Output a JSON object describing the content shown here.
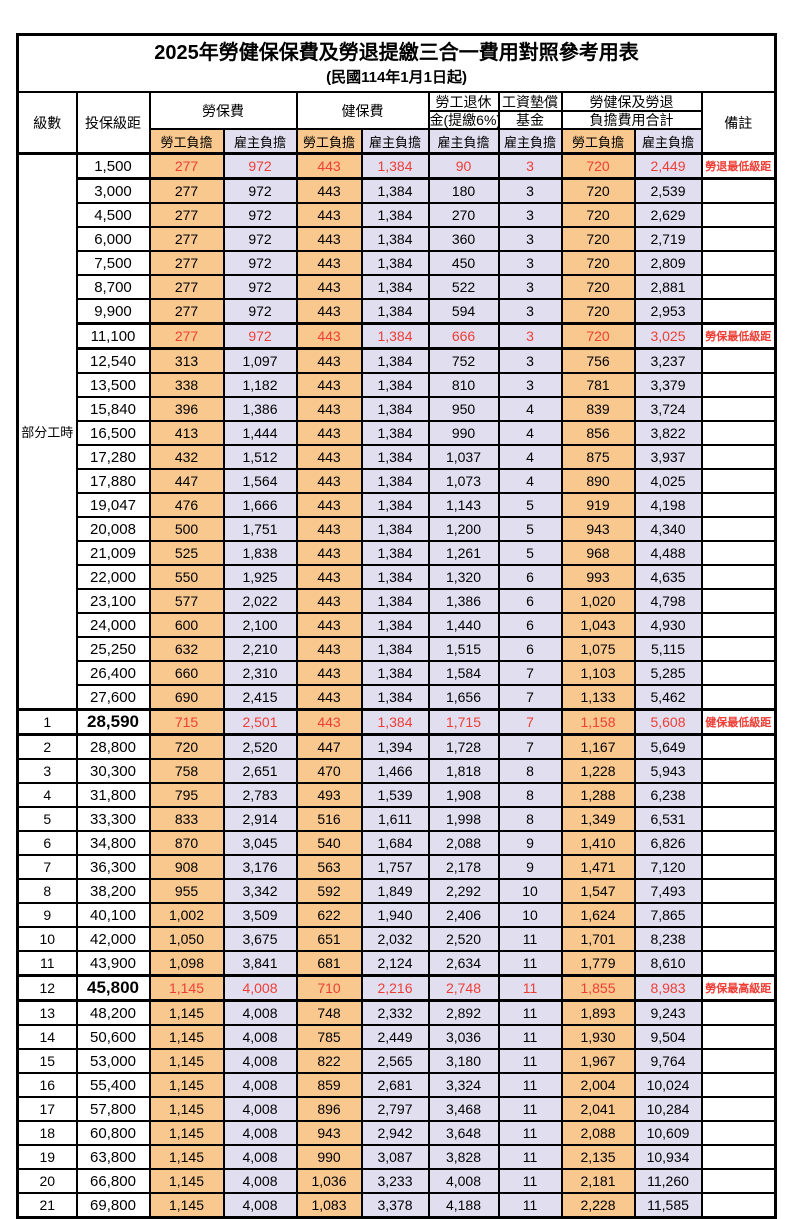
{
  "title": "2025年勞健保保費及勞退提繳三合一費用對照參考用表",
  "subtitle": "(民國114年1月1日起)",
  "colors": {
    "employee_col_bg": "#F8C88E",
    "employer_col_bg": "#E1DEF0",
    "highlight_text": "#EE3E36",
    "grid": "#000000"
  },
  "header": {
    "level": "級數",
    "bracket": "投保級距",
    "labor_ins": "勞保費",
    "health_ins": "健保費",
    "pension_line1": "勞工退休",
    "pension_line2": "金(提繳6%)",
    "wage_fund_line1": "工資墊償",
    "wage_fund_line2": "基金",
    "total_line1": "勞健保及勞退",
    "total_line2": "負擔費用合計",
    "remark": "備註",
    "employee": "勞工負擔",
    "employer": "雇主負擔"
  },
  "part_time_label": "部分工時",
  "part_time_rowspan": 23,
  "rows": [
    {
      "bracket": "1,500",
      "labor_emp": "277",
      "labor_er": "972",
      "health_emp": "443",
      "health_er": "1,384",
      "pension": "90",
      "fund": "3",
      "total_emp": "720",
      "total_er": "2,449",
      "remark": "勞退最低級距",
      "red": true
    },
    {
      "bracket": "3,000",
      "labor_emp": "277",
      "labor_er": "972",
      "health_emp": "443",
      "health_er": "1,384",
      "pension": "180",
      "fund": "3",
      "total_emp": "720",
      "total_er": "2,539",
      "remark": ""
    },
    {
      "bracket": "4,500",
      "labor_emp": "277",
      "labor_er": "972",
      "health_emp": "443",
      "health_er": "1,384",
      "pension": "270",
      "fund": "3",
      "total_emp": "720",
      "total_er": "2,629",
      "remark": ""
    },
    {
      "bracket": "6,000",
      "labor_emp": "277",
      "labor_er": "972",
      "health_emp": "443",
      "health_er": "1,384",
      "pension": "360",
      "fund": "3",
      "total_emp": "720",
      "total_er": "2,719",
      "remark": ""
    },
    {
      "bracket": "7,500",
      "labor_emp": "277",
      "labor_er": "972",
      "health_emp": "443",
      "health_er": "1,384",
      "pension": "450",
      "fund": "3",
      "total_emp": "720",
      "total_er": "2,809",
      "remark": ""
    },
    {
      "bracket": "8,700",
      "labor_emp": "277",
      "labor_er": "972",
      "health_emp": "443",
      "health_er": "1,384",
      "pension": "522",
      "fund": "3",
      "total_emp": "720",
      "total_er": "2,881",
      "remark": ""
    },
    {
      "bracket": "9,900",
      "labor_emp": "277",
      "labor_er": "972",
      "health_emp": "443",
      "health_er": "1,384",
      "pension": "594",
      "fund": "3",
      "total_emp": "720",
      "total_er": "2,953",
      "remark": ""
    },
    {
      "bracket": "11,100",
      "labor_emp": "277",
      "labor_er": "972",
      "health_emp": "443",
      "health_er": "1,384",
      "pension": "666",
      "fund": "3",
      "total_emp": "720",
      "total_er": "3,025",
      "remark": "勞保最低級距",
      "red": true
    },
    {
      "bracket": "12,540",
      "labor_emp": "313",
      "labor_er": "1,097",
      "health_emp": "443",
      "health_er": "1,384",
      "pension": "752",
      "fund": "3",
      "total_emp": "756",
      "total_er": "3,237",
      "remark": ""
    },
    {
      "bracket": "13,500",
      "labor_emp": "338",
      "labor_er": "1,182",
      "health_emp": "443",
      "health_er": "1,384",
      "pension": "810",
      "fund": "3",
      "total_emp": "781",
      "total_er": "3,379",
      "remark": ""
    },
    {
      "bracket": "15,840",
      "labor_emp": "396",
      "labor_er": "1,386",
      "health_emp": "443",
      "health_er": "1,384",
      "pension": "950",
      "fund": "4",
      "total_emp": "839",
      "total_er": "3,724",
      "remark": ""
    },
    {
      "bracket": "16,500",
      "labor_emp": "413",
      "labor_er": "1,444",
      "health_emp": "443",
      "health_er": "1,384",
      "pension": "990",
      "fund": "4",
      "total_emp": "856",
      "total_er": "3,822",
      "remark": ""
    },
    {
      "bracket": "17,280",
      "labor_emp": "432",
      "labor_er": "1,512",
      "health_emp": "443",
      "health_er": "1,384",
      "pension": "1,037",
      "fund": "4",
      "total_emp": "875",
      "total_er": "3,937",
      "remark": ""
    },
    {
      "bracket": "17,880",
      "labor_emp": "447",
      "labor_er": "1,564",
      "health_emp": "443",
      "health_er": "1,384",
      "pension": "1,073",
      "fund": "4",
      "total_emp": "890",
      "total_er": "4,025",
      "remark": ""
    },
    {
      "bracket": "19,047",
      "labor_emp": "476",
      "labor_er": "1,666",
      "health_emp": "443",
      "health_er": "1,384",
      "pension": "1,143",
      "fund": "5",
      "total_emp": "919",
      "total_er": "4,198",
      "remark": ""
    },
    {
      "bracket": "20,008",
      "labor_emp": "500",
      "labor_er": "1,751",
      "health_emp": "443",
      "health_er": "1,384",
      "pension": "1,200",
      "fund": "5",
      "total_emp": "943",
      "total_er": "4,340",
      "remark": ""
    },
    {
      "bracket": "21,009",
      "labor_emp": "525",
      "labor_er": "1,838",
      "health_emp": "443",
      "health_er": "1,384",
      "pension": "1,261",
      "fund": "5",
      "total_emp": "968",
      "total_er": "4,488",
      "remark": ""
    },
    {
      "bracket": "22,000",
      "labor_emp": "550",
      "labor_er": "1,925",
      "health_emp": "443",
      "health_er": "1,384",
      "pension": "1,320",
      "fund": "6",
      "total_emp": "993",
      "total_er": "4,635",
      "remark": ""
    },
    {
      "bracket": "23,100",
      "labor_emp": "577",
      "labor_er": "2,022",
      "health_emp": "443",
      "health_er": "1,384",
      "pension": "1,386",
      "fund": "6",
      "total_emp": "1,020",
      "total_er": "4,798",
      "remark": ""
    },
    {
      "bracket": "24,000",
      "labor_emp": "600",
      "labor_er": "2,100",
      "health_emp": "443",
      "health_er": "1,384",
      "pension": "1,440",
      "fund": "6",
      "total_emp": "1,043",
      "total_er": "4,930",
      "remark": ""
    },
    {
      "bracket": "25,250",
      "labor_emp": "632",
      "labor_er": "2,210",
      "health_emp": "443",
      "health_er": "1,384",
      "pension": "1,515",
      "fund": "6",
      "total_emp": "1,075",
      "total_er": "5,115",
      "remark": ""
    },
    {
      "bracket": "26,400",
      "labor_emp": "660",
      "labor_er": "2,310",
      "health_emp": "443",
      "health_er": "1,384",
      "pension": "1,584",
      "fund": "7",
      "total_emp": "1,103",
      "total_er": "5,285",
      "remark": ""
    },
    {
      "bracket": "27,600",
      "labor_emp": "690",
      "labor_er": "2,415",
      "health_emp": "443",
      "health_er": "1,384",
      "pension": "1,656",
      "fund": "7",
      "total_emp": "1,133",
      "total_er": "5,462",
      "remark": ""
    },
    {
      "level": "1",
      "bracket": "28,590",
      "labor_emp": "715",
      "labor_er": "2,501",
      "health_emp": "443",
      "health_er": "1,384",
      "pension": "1,715",
      "fund": "7",
      "total_emp": "1,158",
      "total_er": "5,608",
      "remark": "健保最低級距",
      "red": true,
      "big": true
    },
    {
      "level": "2",
      "bracket": "28,800",
      "labor_emp": "720",
      "labor_er": "2,520",
      "health_emp": "447",
      "health_er": "1,394",
      "pension": "1,728",
      "fund": "7",
      "total_emp": "1,167",
      "total_er": "5,649",
      "remark": ""
    },
    {
      "level": "3",
      "bracket": "30,300",
      "labor_emp": "758",
      "labor_er": "2,651",
      "health_emp": "470",
      "health_er": "1,466",
      "pension": "1,818",
      "fund": "8",
      "total_emp": "1,228",
      "total_er": "5,943",
      "remark": ""
    },
    {
      "level": "4",
      "bracket": "31,800",
      "labor_emp": "795",
      "labor_er": "2,783",
      "health_emp": "493",
      "health_er": "1,539",
      "pension": "1,908",
      "fund": "8",
      "total_emp": "1,288",
      "total_er": "6,238",
      "remark": ""
    },
    {
      "level": "5",
      "bracket": "33,300",
      "labor_emp": "833",
      "labor_er": "2,914",
      "health_emp": "516",
      "health_er": "1,611",
      "pension": "1,998",
      "fund": "8",
      "total_emp": "1,349",
      "total_er": "6,531",
      "remark": ""
    },
    {
      "level": "6",
      "bracket": "34,800",
      "labor_emp": "870",
      "labor_er": "3,045",
      "health_emp": "540",
      "health_er": "1,684",
      "pension": "2,088",
      "fund": "9",
      "total_emp": "1,410",
      "total_er": "6,826",
      "remark": ""
    },
    {
      "level": "7",
      "bracket": "36,300",
      "labor_emp": "908",
      "labor_er": "3,176",
      "health_emp": "563",
      "health_er": "1,757",
      "pension": "2,178",
      "fund": "9",
      "total_emp": "1,471",
      "total_er": "7,120",
      "remark": ""
    },
    {
      "level": "8",
      "bracket": "38,200",
      "labor_emp": "955",
      "labor_er": "3,342",
      "health_emp": "592",
      "health_er": "1,849",
      "pension": "2,292",
      "fund": "10",
      "total_emp": "1,547",
      "total_er": "7,493",
      "remark": ""
    },
    {
      "level": "9",
      "bracket": "40,100",
      "labor_emp": "1,002",
      "labor_er": "3,509",
      "health_emp": "622",
      "health_er": "1,940",
      "pension": "2,406",
      "fund": "10",
      "total_emp": "1,624",
      "total_er": "7,865",
      "remark": ""
    },
    {
      "level": "10",
      "bracket": "42,000",
      "labor_emp": "1,050",
      "labor_er": "3,675",
      "health_emp": "651",
      "health_er": "2,032",
      "pension": "2,520",
      "fund": "11",
      "total_emp": "1,701",
      "total_er": "8,238",
      "remark": ""
    },
    {
      "level": "11",
      "bracket": "43,900",
      "labor_emp": "1,098",
      "labor_er": "3,841",
      "health_emp": "681",
      "health_er": "2,124",
      "pension": "2,634",
      "fund": "11",
      "total_emp": "1,779",
      "total_er": "8,610",
      "remark": ""
    },
    {
      "level": "12",
      "bracket": "45,800",
      "labor_emp": "1,145",
      "labor_er": "4,008",
      "health_emp": "710",
      "health_er": "2,216",
      "pension": "2,748",
      "fund": "11",
      "total_emp": "1,855",
      "total_er": "8,983",
      "remark": "勞保最高級距",
      "red": true,
      "big": true
    },
    {
      "level": "13",
      "bracket": "48,200",
      "labor_emp": "1,145",
      "labor_er": "4,008",
      "health_emp": "748",
      "health_er": "2,332",
      "pension": "2,892",
      "fund": "11",
      "total_emp": "1,893",
      "total_er": "9,243",
      "remark": ""
    },
    {
      "level": "14",
      "bracket": "50,600",
      "labor_emp": "1,145",
      "labor_er": "4,008",
      "health_emp": "785",
      "health_er": "2,449",
      "pension": "3,036",
      "fund": "11",
      "total_emp": "1,930",
      "total_er": "9,504",
      "remark": ""
    },
    {
      "level": "15",
      "bracket": "53,000",
      "labor_emp": "1,145",
      "labor_er": "4,008",
      "health_emp": "822",
      "health_er": "2,565",
      "pension": "3,180",
      "fund": "11",
      "total_emp": "1,967",
      "total_er": "9,764",
      "remark": ""
    },
    {
      "level": "16",
      "bracket": "55,400",
      "labor_emp": "1,145",
      "labor_er": "4,008",
      "health_emp": "859",
      "health_er": "2,681",
      "pension": "3,324",
      "fund": "11",
      "total_emp": "2,004",
      "total_er": "10,024",
      "remark": ""
    },
    {
      "level": "17",
      "bracket": "57,800",
      "labor_emp": "1,145",
      "labor_er": "4,008",
      "health_emp": "896",
      "health_er": "2,797",
      "pension": "3,468",
      "fund": "11",
      "total_emp": "2,041",
      "total_er": "10,284",
      "remark": ""
    },
    {
      "level": "18",
      "bracket": "60,800",
      "labor_emp": "1,145",
      "labor_er": "4,008",
      "health_emp": "943",
      "health_er": "2,942",
      "pension": "3,648",
      "fund": "11",
      "total_emp": "2,088",
      "total_er": "10,609",
      "remark": ""
    },
    {
      "level": "19",
      "bracket": "63,800",
      "labor_emp": "1,145",
      "labor_er": "4,008",
      "health_emp": "990",
      "health_er": "3,087",
      "pension": "3,828",
      "fund": "11",
      "total_emp": "2,135",
      "total_er": "10,934",
      "remark": ""
    },
    {
      "level": "20",
      "bracket": "66,800",
      "labor_emp": "1,145",
      "labor_er": "4,008",
      "health_emp": "1,036",
      "health_er": "3,233",
      "pension": "4,008",
      "fund": "11",
      "total_emp": "2,181",
      "total_er": "11,260",
      "remark": ""
    },
    {
      "level": "21",
      "bracket": "69,800",
      "labor_emp": "1,145",
      "labor_er": "4,008",
      "health_emp": "1,083",
      "health_er": "3,378",
      "pension": "4,188",
      "fund": "11",
      "total_emp": "2,228",
      "total_er": "11,585",
      "remark": ""
    }
  ]
}
